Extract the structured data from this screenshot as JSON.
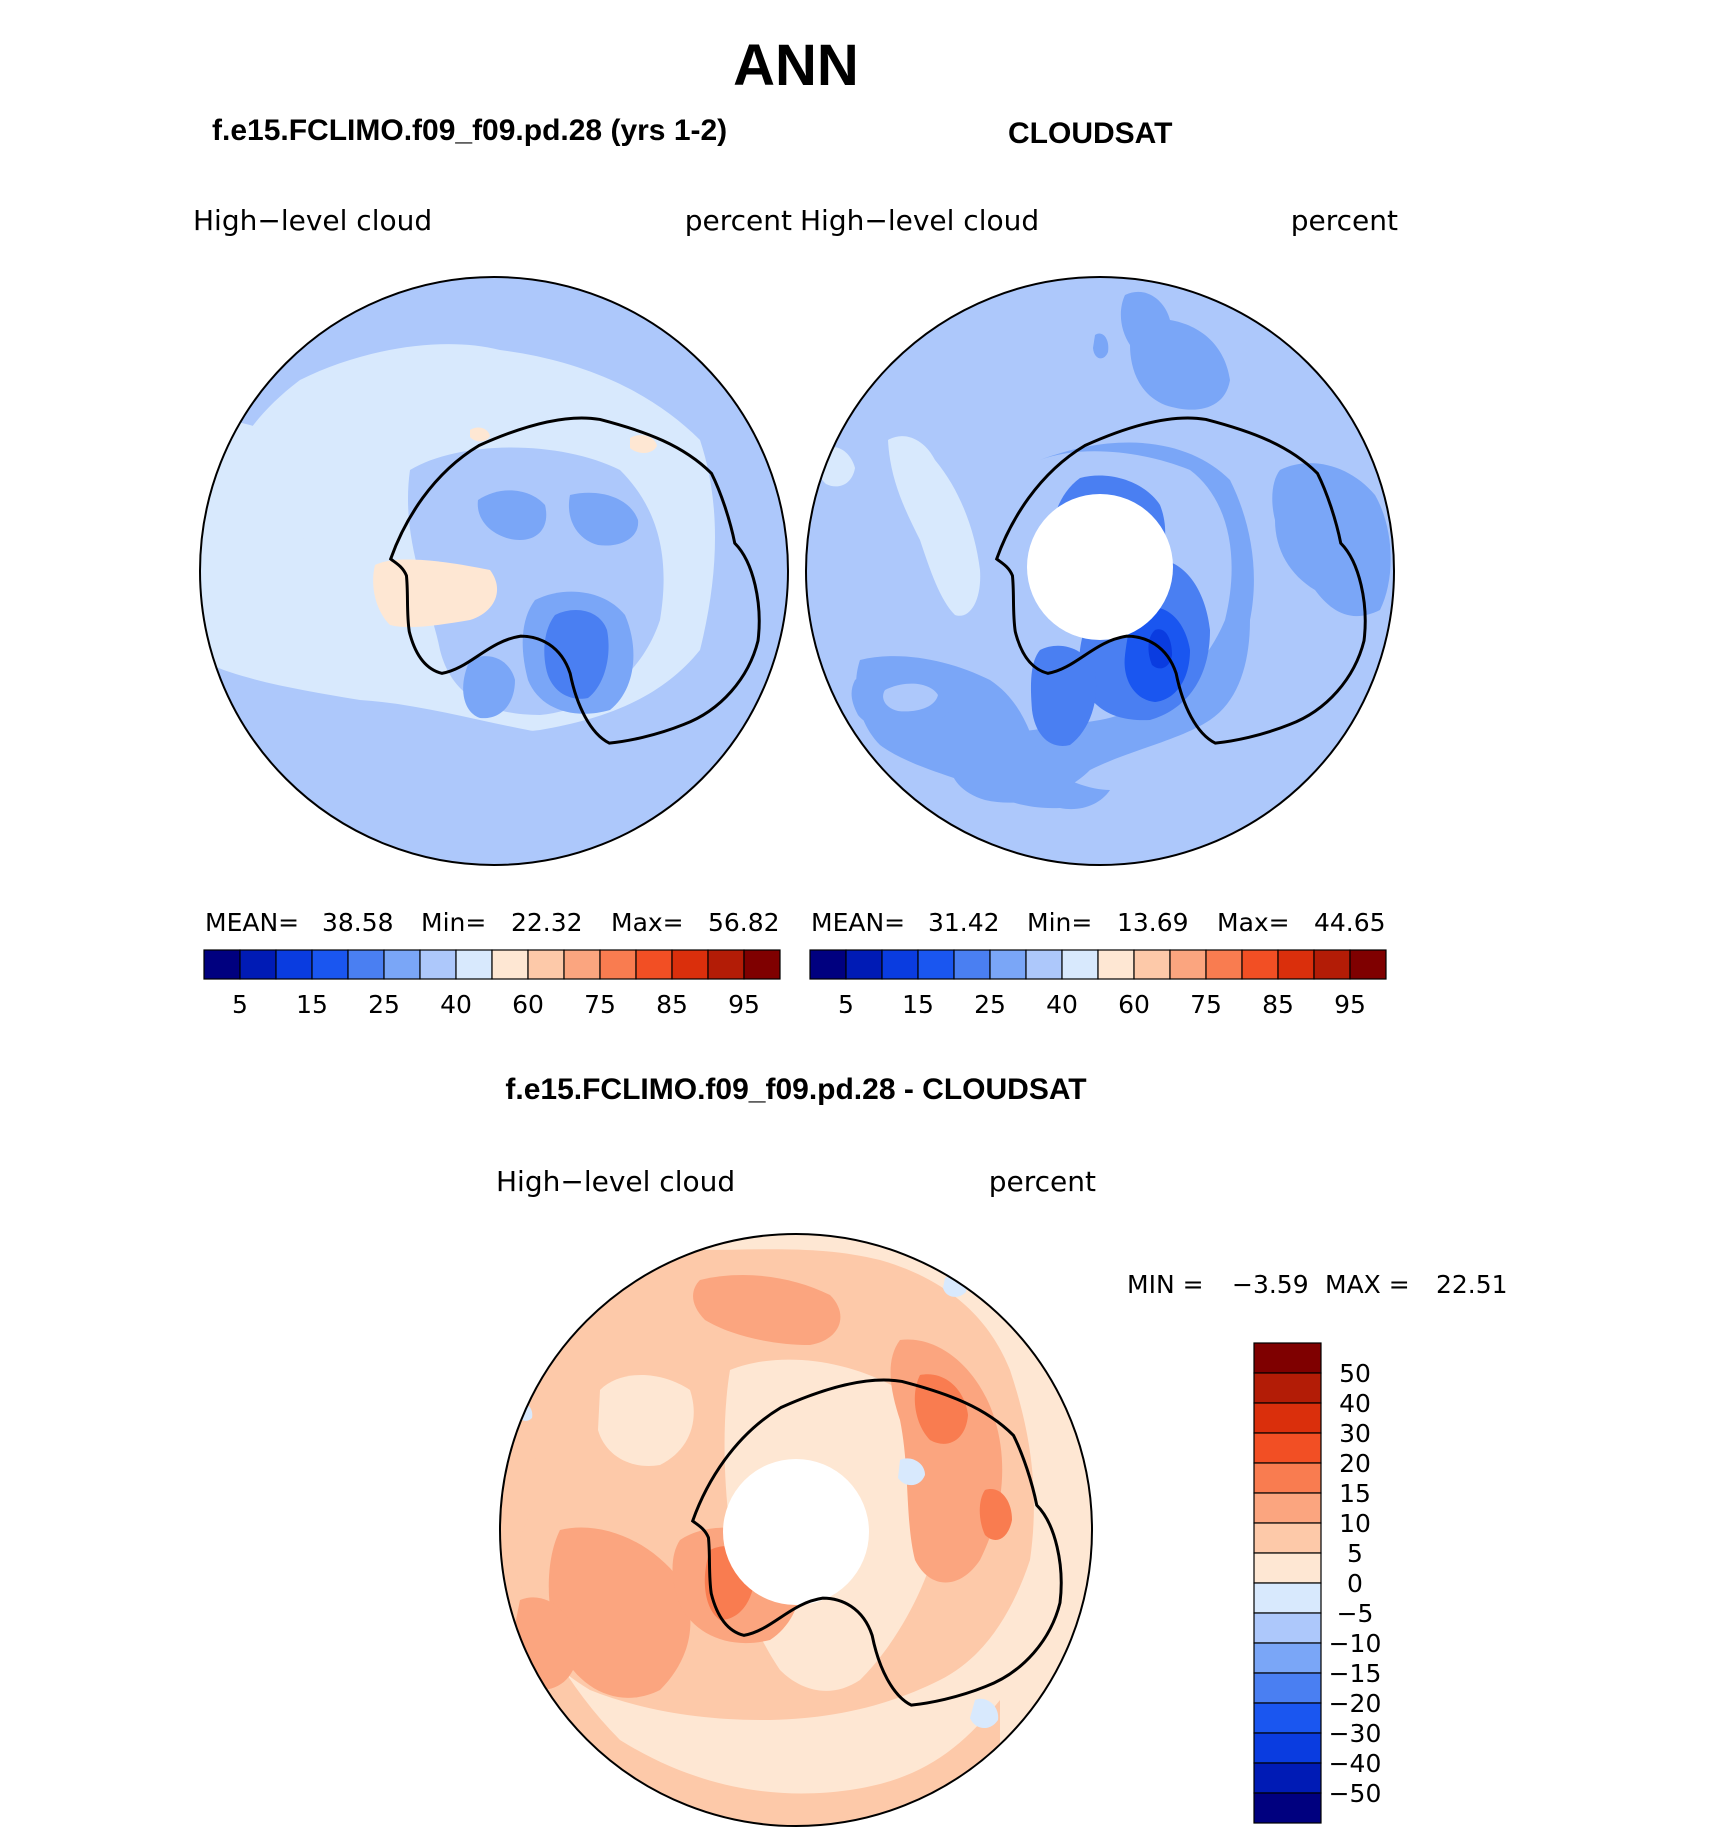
{
  "figure_title": "ANN",
  "palettes": {
    "abs": [
      "#00007f",
      "#001bb5",
      "#0a3ce0",
      "#1a56f0",
      "#4a7ff2",
      "#7aa6f7",
      "#adc8fb",
      "#d8e9fd",
      "#fee7d3",
      "#fdc9a9",
      "#fba57f",
      "#f97c50",
      "#f24f24",
      "#da2f0c",
      "#b31c06",
      "#7f0000"
    ],
    "diff": [
      "#00007f",
      "#001bb5",
      "#0a3ce0",
      "#1a56f0",
      "#4a7ff2",
      "#7aa6f7",
      "#adc8fb",
      "#d8e9fd",
      "#fee7d3",
      "#fdc9a9",
      "#fba57f",
      "#f97c50",
      "#f24f24",
      "#da2f0c",
      "#b31c06",
      "#7f0000"
    ],
    "coastline": "#000000",
    "missing": "#ffffff"
  },
  "chart_data": [
    {
      "type": "heatmap",
      "projection": "south-polar-stereographic",
      "case_title": "f.e15.FCLIMO.f09_f09.pd.28 (yrs 1-2)",
      "variable": "High−level cloud",
      "units": "percent",
      "stats": {
        "mean_label": "MEAN=",
        "mean": "38.58",
        "min_label": "Min=",
        "min": "22.32",
        "max_label": "Max=",
        "max": "56.82"
      },
      "colorbar": {
        "levels": [
          5,
          10,
          15,
          20,
          25,
          30,
          40,
          50,
          60,
          70,
          75,
          80,
          85,
          90,
          95
        ],
        "tick_labels": [
          "5",
          "15",
          "25",
          "40",
          "60",
          "75",
          "85",
          "95"
        ],
        "orientation": "horizontal"
      },
      "dominant_range": [
        30,
        40
      ],
      "features": [
        "minimum 20-25 over East Antarctic plateau",
        "30-40 ring over Antarctica",
        "40-50 band north of coastline",
        "50-60 patches over Ross Ice Shelf region"
      ]
    },
    {
      "type": "heatmap",
      "projection": "south-polar-stereographic",
      "case_title": "CLOUDSAT",
      "variable": "High−level cloud",
      "units": "percent",
      "stats": {
        "mean_label": "MEAN=",
        "mean": "31.42",
        "min_label": "Min=",
        "min": "13.69",
        "max_label": "Max=",
        "max": "44.65"
      },
      "colorbar": {
        "levels": [
          5,
          10,
          15,
          20,
          25,
          30,
          40,
          50,
          60,
          70,
          75,
          80,
          85,
          90,
          95
        ],
        "tick_labels": [
          "5",
          "15",
          "25",
          "40",
          "60",
          "75",
          "85",
          "95"
        ],
        "orientation": "horizontal"
      },
      "missing_region": "pole (south of ~82S)",
      "dominant_range": [
        30,
        40
      ],
      "features": [
        "minimum 10-15 over East Antarctica",
        "20-30 over East Antarctica and Southern Ocean",
        "40-50 along Antarctic Peninsula"
      ]
    },
    {
      "type": "heatmap",
      "projection": "south-polar-stereographic",
      "case_title": "f.e15.FCLIMO.f09_f09.pd.28 - CLOUDSAT",
      "variable": "High−level cloud",
      "units": "percent",
      "stats": {
        "min_label": "MIN =",
        "min": "−3.59",
        "max_label": "MAX =",
        "max": "22.51"
      },
      "colorbar": {
        "levels": [
          -50,
          -40,
          -30,
          -20,
          -15,
          -10,
          -5,
          0,
          5,
          10,
          15,
          20,
          30,
          40,
          50
        ],
        "tick_labels": [
          "50",
          "40",
          "30",
          "20",
          "15",
          "10",
          "5",
          "0",
          "−5",
          "−10",
          "−15",
          "−20",
          "−30",
          "−40",
          "−50"
        ],
        "orientation": "vertical"
      },
      "missing_region": "pole (south of ~82S)",
      "dominant_range": [
        0,
        10
      ],
      "features": [
        "10-15 band around the continent",
        "15-20 patches off the East Antarctic coast",
        "small -5-0 patches"
      ]
    }
  ]
}
